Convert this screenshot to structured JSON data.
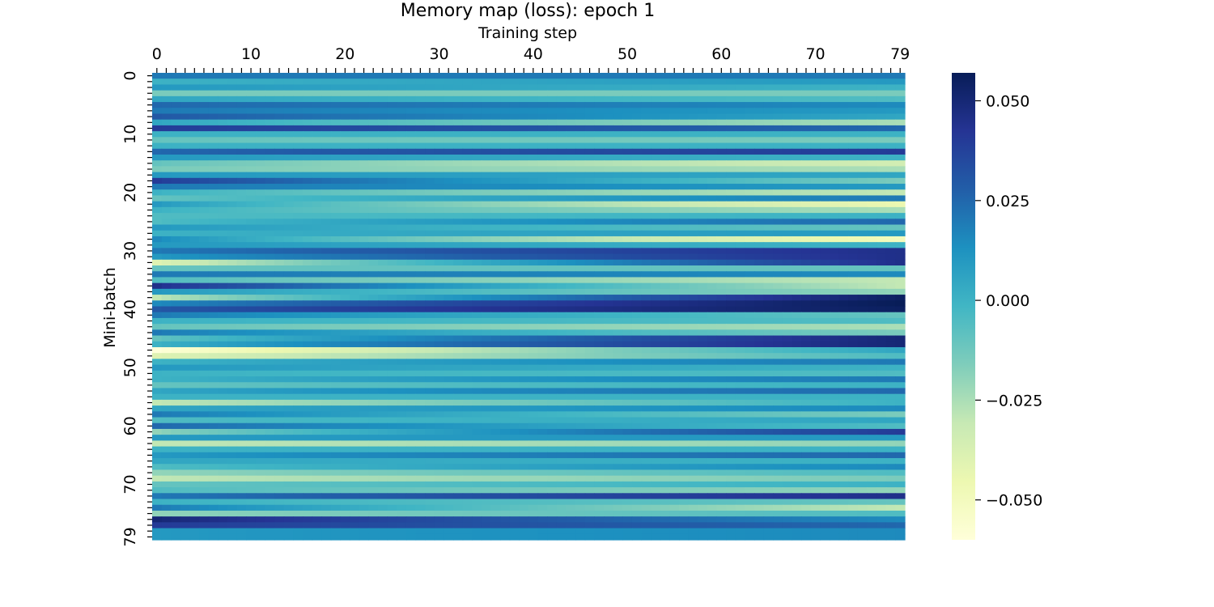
{
  "chart_data": {
    "type": "heatmap",
    "title": "Memory map (loss): epoch 1",
    "xlabel": "Training step",
    "ylabel": "Mini-batch",
    "x_range": [
      0,
      79
    ],
    "y_range": [
      0,
      79
    ],
    "x_tick_labels": [
      "0",
      "10",
      "20",
      "30",
      "40",
      "50",
      "60",
      "70",
      "79"
    ],
    "x_tick_values": [
      0,
      10,
      20,
      30,
      40,
      50,
      60,
      70,
      79
    ],
    "y_tick_labels": [
      "0",
      "10",
      "20",
      "30",
      "40",
      "50",
      "60",
      "70",
      "79"
    ],
    "y_tick_values": [
      0,
      10,
      20,
      30,
      40,
      50,
      60,
      70,
      79
    ],
    "x_axis_position": "top",
    "colormap": "YlGnBu",
    "colormap_stops": [
      "#ffffd9",
      "#edf8b1",
      "#c7e9b4",
      "#7fcdbb",
      "#41b6c4",
      "#1d91c0",
      "#225ea8",
      "#253494",
      "#081d58"
    ],
    "vmin": -0.06,
    "vmax": 0.057,
    "colorbar": {
      "tick_labels": [
        "0.050",
        "0.025",
        "0.000",
        "−0.025",
        "−0.050"
      ],
      "tick_values": [
        0.05,
        0.025,
        0.0,
        -0.025,
        -0.05
      ],
      "position": "right"
    },
    "grid": false,
    "row_start_values": [
      0.02,
      0.0,
      0.01,
      -0.015,
      0.005,
      0.025,
      0.02,
      0.03,
      0.005,
      0.04,
      0.0,
      -0.01,
      0.0,
      0.025,
      0.01,
      -0.01,
      -0.015,
      0.01,
      0.04,
      0.02,
      0.0,
      -0.01,
      0.01,
      0.0,
      -0.005,
      -0.005,
      0.01,
      0.0,
      0.015,
      0.01,
      0.02,
      0.01,
      -0.04,
      -0.01,
      0.02,
      -0.005,
      0.045,
      0.01,
      -0.03,
      0.015,
      0.03,
      0.02,
      0.0,
      -0.01,
      0.02,
      -0.01,
      0.0,
      -0.06,
      -0.04,
      0.0,
      0.01,
      0.0,
      0.0,
      -0.01,
      0.005,
      0.0,
      -0.03,
      0.005,
      0.02,
      -0.005,
      0.025,
      -0.02,
      0.01,
      -0.03,
      0.0,
      0.01,
      0.005,
      -0.005,
      -0.02,
      -0.03,
      -0.01,
      -0.005,
      0.02,
      0.0,
      0.02,
      -0.02,
      0.05,
      0.04,
      0.01,
      0.01
    ],
    "row_end_values": [
      0.02,
      0.01,
      0.0,
      -0.015,
      -0.005,
      0.015,
      0.01,
      0.005,
      -0.025,
      0.025,
      0.0,
      -0.015,
      0.0,
      0.04,
      0.0,
      -0.035,
      -0.025,
      0.005,
      -0.015,
      0.01,
      -0.03,
      0.02,
      -0.045,
      -0.025,
      0.0,
      0.025,
      -0.01,
      0.01,
      -0.05,
      0.0,
      0.045,
      0.045,
      0.045,
      -0.01,
      0.015,
      -0.03,
      -0.03,
      -0.02,
      0.055,
      0.057,
      0.055,
      -0.01,
      -0.005,
      -0.025,
      -0.015,
      0.05,
      0.05,
      0.005,
      -0.005,
      0.02,
      0.0,
      -0.005,
      0.02,
      0.0,
      0.025,
      0.0,
      0.0,
      0.015,
      -0.015,
      0.005,
      -0.005,
      0.04,
      0.01,
      -0.02,
      0.0,
      0.025,
      0.0,
      0.015,
      -0.005,
      -0.015,
      0.0,
      -0.02,
      0.045,
      -0.01,
      -0.03,
      -0.005,
      0.015,
      0.025,
      0.015,
      0.015
    ]
  }
}
